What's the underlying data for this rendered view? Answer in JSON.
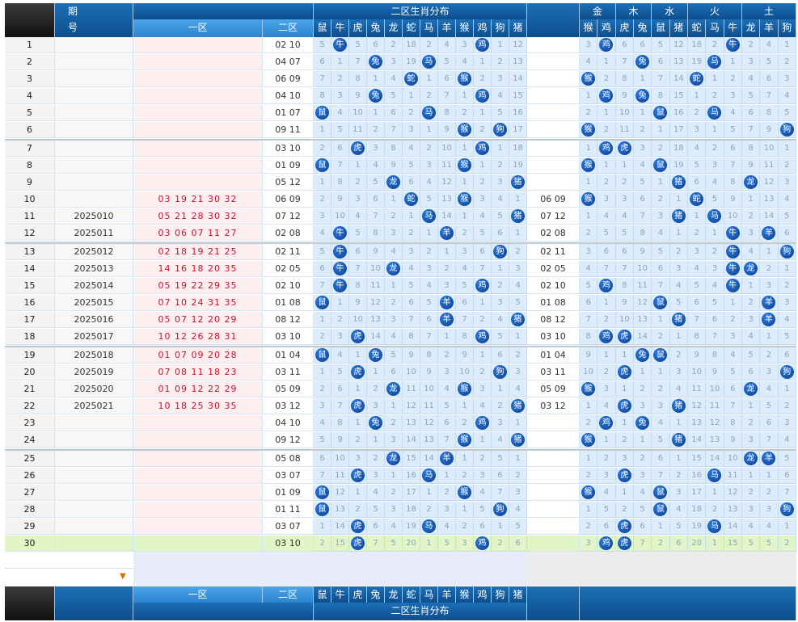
{
  "header": {
    "period_label": "期\n号",
    "period_label_top": "期",
    "period_label_bottom": "号",
    "zone1_label": "一区",
    "zone2_label": "二区",
    "dist_title": "二区生肖分布",
    "element_groups": [
      "金",
      "木",
      "水",
      "火",
      "土"
    ],
    "zodiac_cols": [
      "鼠",
      "牛",
      "虎",
      "兔",
      "龙",
      "蛇",
      "马",
      "羊",
      "猴",
      "鸡",
      "狗",
      "猪"
    ],
    "element_cols": [
      "猴",
      "鸡",
      "虎",
      "兔",
      "鼠",
      "猪",
      "蛇",
      "马",
      "牛",
      "龙",
      "羊",
      "狗"
    ]
  },
  "rows": [
    {
      "no": "1",
      "period": "",
      "z1": "",
      "z2": "02 10",
      "grid": [
        "5",
        "牛",
        "5",
        "6",
        "2",
        "18",
        "2",
        "4",
        "3",
        "鸡",
        "1",
        "12"
      ],
      "z3": "",
      "grid2": [
        "3",
        "鸡",
        "6",
        "6",
        "5",
        "12",
        "18",
        "2",
        "牛",
        "2",
        "4",
        "1"
      ]
    },
    {
      "no": "2",
      "period": "",
      "z1": "",
      "z2": "04 07",
      "grid": [
        "6",
        "1",
        "7",
        "兔",
        "3",
        "19",
        "马",
        "5",
        "4",
        "1",
        "2",
        "13"
      ],
      "z3": "",
      "grid2": [
        "4",
        "1",
        "7",
        "兔",
        "6",
        "13",
        "19",
        "马",
        "1",
        "3",
        "5",
        "2"
      ]
    },
    {
      "no": "3",
      "period": "",
      "z1": "",
      "z2": "06 09",
      "grid": [
        "7",
        "2",
        "8",
        "1",
        "4",
        "蛇",
        "1",
        "6",
        "猴",
        "2",
        "3",
        "14"
      ],
      "z3": "",
      "grid2": [
        "猴",
        "2",
        "8",
        "1",
        "7",
        "14",
        "蛇",
        "1",
        "2",
        "4",
        "6",
        "3"
      ]
    },
    {
      "no": "4",
      "period": "",
      "z1": "",
      "z2": "04 10",
      "grid": [
        "8",
        "3",
        "9",
        "兔",
        "5",
        "1",
        "2",
        "7",
        "1",
        "鸡",
        "4",
        "15"
      ],
      "z3": "",
      "grid2": [
        "1",
        "鸡",
        "9",
        "兔",
        "8",
        "15",
        "1",
        "2",
        "3",
        "5",
        "7",
        "4"
      ]
    },
    {
      "no": "5",
      "period": "",
      "z1": "",
      "z2": "01 07",
      "grid": [
        "鼠",
        "4",
        "10",
        "1",
        "6",
        "2",
        "马",
        "8",
        "2",
        "1",
        "5",
        "16"
      ],
      "z3": "",
      "grid2": [
        "2",
        "1",
        "10",
        "1",
        "鼠",
        "16",
        "2",
        "马",
        "4",
        "6",
        "8",
        "5"
      ]
    },
    {
      "no": "6",
      "period": "",
      "z1": "",
      "z2": "09 11",
      "grid": [
        "1",
        "5",
        "11",
        "2",
        "7",
        "3",
        "1",
        "9",
        "猴",
        "2",
        "狗",
        "17"
      ],
      "z3": "",
      "grid2": [
        "猴",
        "2",
        "11",
        "2",
        "1",
        "17",
        "3",
        "1",
        "5",
        "7",
        "9",
        "狗"
      ]
    },
    {
      "no": "7",
      "period": "",
      "z1": "",
      "z2": "03 10",
      "grid": [
        "2",
        "6",
        "虎",
        "3",
        "8",
        "4",
        "2",
        "10",
        "1",
        "鸡",
        "1",
        "18"
      ],
      "z3": "",
      "grid2": [
        "1",
        "鸡",
        "虎",
        "3",
        "2",
        "18",
        "4",
        "2",
        "6",
        "8",
        "10",
        "1"
      ]
    },
    {
      "no": "8",
      "period": "",
      "z1": "",
      "z2": "01 09",
      "grid": [
        "鼠",
        "7",
        "1",
        "4",
        "9",
        "5",
        "3",
        "11",
        "猴",
        "1",
        "2",
        "19"
      ],
      "z3": "",
      "grid2": [
        "猴",
        "1",
        "1",
        "4",
        "鼠",
        "19",
        "5",
        "3",
        "7",
        "9",
        "11",
        "2"
      ]
    },
    {
      "no": "9",
      "period": "",
      "z1": "",
      "z2": "05 12",
      "grid": [
        "1",
        "8",
        "2",
        "5",
        "龙",
        "6",
        "4",
        "12",
        "1",
        "2",
        "3",
        "猪"
      ],
      "z3": "",
      "grid2": [
        "1",
        "2",
        "2",
        "5",
        "1",
        "猪",
        "6",
        "4",
        "8",
        "龙",
        "12",
        "3"
      ]
    },
    {
      "no": "10",
      "period": "",
      "z1": "03 19 21 30 32",
      "z2": "06 09",
      "grid": [
        "2",
        "9",
        "3",
        "6",
        "1",
        "蛇",
        "5",
        "13",
        "猴",
        "3",
        "4",
        "1"
      ],
      "z3": "06 09",
      "grid2": [
        "猴",
        "3",
        "3",
        "6",
        "2",
        "1",
        "蛇",
        "5",
        "9",
        "1",
        "13",
        "4"
      ]
    },
    {
      "no": "11",
      "period": "2025010",
      "z1": "05 21 28 30 32",
      "z2": "07 12",
      "grid": [
        "3",
        "10",
        "4",
        "7",
        "2",
        "1",
        "马",
        "14",
        "1",
        "4",
        "5",
        "猪"
      ],
      "z3": "07 12",
      "grid2": [
        "1",
        "4",
        "4",
        "7",
        "3",
        "猪",
        "1",
        "马",
        "10",
        "2",
        "14",
        "5"
      ]
    },
    {
      "no": "12",
      "period": "2025011",
      "z1": "03 06 07 11 27",
      "z2": "02 08",
      "grid": [
        "4",
        "牛",
        "5",
        "8",
        "3",
        "2",
        "1",
        "羊",
        "2",
        "5",
        "6",
        "1"
      ],
      "z3": "02 08",
      "grid2": [
        "2",
        "5",
        "5",
        "8",
        "4",
        "1",
        "2",
        "1",
        "牛",
        "3",
        "羊",
        "6"
      ]
    },
    {
      "no": "13",
      "period": "2025012",
      "z1": "02 18 19 21 25",
      "z2": "02 11",
      "grid": [
        "5",
        "牛",
        "6",
        "9",
        "4",
        "3",
        "2",
        "1",
        "3",
        "6",
        "狗",
        "2"
      ],
      "z3": "02 11",
      "grid2": [
        "3",
        "6",
        "6",
        "9",
        "5",
        "2",
        "3",
        "2",
        "牛",
        "4",
        "1",
        "狗"
      ]
    },
    {
      "no": "14",
      "period": "2025013",
      "z1": "14 16 18 20 35",
      "z2": "02 05",
      "grid": [
        "6",
        "牛",
        "7",
        "10",
        "龙",
        "4",
        "3",
        "2",
        "4",
        "7",
        "1",
        "3"
      ],
      "z3": "02 05",
      "grid2": [
        "4",
        "7",
        "7",
        "10",
        "6",
        "3",
        "4",
        "3",
        "牛",
        "龙",
        "2",
        "1"
      ]
    },
    {
      "no": "15",
      "period": "2025014",
      "z1": "05 19 22 29 35",
      "z2": "02 10",
      "grid": [
        "7",
        "牛",
        "8",
        "11",
        "1",
        "5",
        "4",
        "3",
        "5",
        "鸡",
        "2",
        "4"
      ],
      "z3": "02 10",
      "grid2": [
        "5",
        "鸡",
        "8",
        "11",
        "7",
        "4",
        "5",
        "4",
        "牛",
        "1",
        "3",
        "2"
      ]
    },
    {
      "no": "16",
      "period": "2025015",
      "z1": "07 10 24 31 35",
      "z2": "01 08",
      "grid": [
        "鼠",
        "1",
        "9",
        "12",
        "2",
        "6",
        "5",
        "羊",
        "6",
        "1",
        "3",
        "5"
      ],
      "z3": "01 08",
      "grid2": [
        "6",
        "1",
        "9",
        "12",
        "鼠",
        "5",
        "6",
        "5",
        "1",
        "2",
        "羊",
        "3"
      ]
    },
    {
      "no": "17",
      "period": "2025016",
      "z1": "05 07 12 20 29",
      "z2": "08 12",
      "grid": [
        "1",
        "2",
        "10",
        "13",
        "3",
        "7",
        "6",
        "羊",
        "7",
        "2",
        "4",
        "猪"
      ],
      "z3": "08 12",
      "grid2": [
        "7",
        "2",
        "10",
        "13",
        "1",
        "猪",
        "7",
        "6",
        "2",
        "3",
        "羊",
        "4"
      ]
    },
    {
      "no": "18",
      "period": "2025017",
      "z1": "10 12 26 28 31",
      "z2": "03 10",
      "grid": [
        "2",
        "3",
        "虎",
        "14",
        "4",
        "8",
        "7",
        "1",
        "8",
        "鸡",
        "5",
        "1"
      ],
      "z3": "03 10",
      "grid2": [
        "8",
        "鸡",
        "虎",
        "14",
        "2",
        "1",
        "8",
        "7",
        "3",
        "4",
        "1",
        "5"
      ]
    },
    {
      "no": "19",
      "period": "2025018",
      "z1": "01 07 09 20 28",
      "z2": "01 04",
      "grid": [
        "鼠",
        "4",
        "1",
        "兔",
        "5",
        "9",
        "8",
        "2",
        "9",
        "1",
        "6",
        "2"
      ],
      "z3": "01 04",
      "grid2": [
        "9",
        "1",
        "1",
        "兔",
        "鼠",
        "2",
        "9",
        "8",
        "4",
        "5",
        "2",
        "6"
      ]
    },
    {
      "no": "20",
      "period": "2025019",
      "z1": "07 08 11 18 23",
      "z2": "03 11",
      "grid": [
        "1",
        "5",
        "虎",
        "1",
        "6",
        "10",
        "9",
        "3",
        "10",
        "2",
        "狗",
        "3"
      ],
      "z3": "03 11",
      "grid2": [
        "10",
        "2",
        "虎",
        "1",
        "1",
        "3",
        "10",
        "9",
        "5",
        "6",
        "3",
        "狗"
      ]
    },
    {
      "no": "21",
      "period": "2025020",
      "z1": "01 09 12 22 29",
      "z2": "05 09",
      "grid": [
        "2",
        "6",
        "1",
        "2",
        "龙",
        "11",
        "10",
        "4",
        "猴",
        "3",
        "1",
        "4"
      ],
      "z3": "05 09",
      "grid2": [
        "猴",
        "3",
        "1",
        "2",
        "2",
        "4",
        "11",
        "10",
        "6",
        "龙",
        "4",
        "1"
      ]
    },
    {
      "no": "22",
      "period": "2025021",
      "z1": "10 18 25 30 35",
      "z2": "03 12",
      "grid": [
        "3",
        "7",
        "虎",
        "3",
        "1",
        "12",
        "11",
        "5",
        "1",
        "4",
        "2",
        "猪"
      ],
      "z3": "03 12",
      "grid2": [
        "1",
        "4",
        "虎",
        "3",
        "3",
        "猪",
        "12",
        "11",
        "7",
        "1",
        "5",
        "2"
      ]
    },
    {
      "no": "23",
      "period": "",
      "z1": "",
      "z2": "04 10",
      "grid": [
        "4",
        "8",
        "1",
        "兔",
        "2",
        "13",
        "12",
        "6",
        "2",
        "鸡",
        "3",
        "1"
      ],
      "z3": "",
      "grid2": [
        "2",
        "鸡",
        "1",
        "兔",
        "4",
        "1",
        "13",
        "12",
        "8",
        "2",
        "6",
        "3"
      ]
    },
    {
      "no": "24",
      "period": "",
      "z1": "",
      "z2": "09 12",
      "grid": [
        "5",
        "9",
        "2",
        "1",
        "3",
        "14",
        "13",
        "7",
        "猴",
        "1",
        "4",
        "猪"
      ],
      "z3": "",
      "grid2": [
        "猴",
        "1",
        "2",
        "1",
        "5",
        "猪",
        "14",
        "13",
        "9",
        "3",
        "7",
        "4"
      ]
    },
    {
      "no": "25",
      "period": "",
      "z1": "",
      "z2": "05 08",
      "grid": [
        "6",
        "10",
        "3",
        "2",
        "龙",
        "15",
        "14",
        "羊",
        "1",
        "2",
        "5",
        "1"
      ],
      "z3": "",
      "grid2": [
        "1",
        "2",
        "3",
        "2",
        "6",
        "1",
        "15",
        "14",
        "10",
        "龙",
        "羊",
        "5"
      ]
    },
    {
      "no": "26",
      "period": "",
      "z1": "",
      "z2": "03 07",
      "grid": [
        "7",
        "11",
        "虎",
        "3",
        "1",
        "16",
        "马",
        "1",
        "2",
        "3",
        "6",
        "2"
      ],
      "z3": "",
      "grid2": [
        "2",
        "3",
        "虎",
        "3",
        "7",
        "2",
        "16",
        "马",
        "11",
        "1",
        "1",
        "6"
      ]
    },
    {
      "no": "27",
      "period": "",
      "z1": "",
      "z2": "01 09",
      "grid": [
        "鼠",
        "12",
        "1",
        "4",
        "2",
        "17",
        "1",
        "2",
        "猴",
        "4",
        "7",
        "3"
      ],
      "z3": "",
      "grid2": [
        "猴",
        "4",
        "1",
        "4",
        "鼠",
        "3",
        "17",
        "1",
        "12",
        "2",
        "2",
        "7"
      ]
    },
    {
      "no": "28",
      "period": "",
      "z1": "",
      "z2": "01 11",
      "grid": [
        "鼠",
        "13",
        "2",
        "5",
        "3",
        "18",
        "2",
        "3",
        "1",
        "5",
        "狗",
        "4"
      ],
      "z3": "",
      "grid2": [
        "1",
        "5",
        "2",
        "5",
        "鼠",
        "4",
        "18",
        "2",
        "13",
        "3",
        "3",
        "狗"
      ]
    },
    {
      "no": "29",
      "period": "",
      "z1": "",
      "z2": "03 07",
      "grid": [
        "1",
        "14",
        "虎",
        "6",
        "4",
        "19",
        "马",
        "4",
        "2",
        "6",
        "1",
        "5"
      ],
      "z3": "",
      "grid2": [
        "2",
        "6",
        "虎",
        "6",
        "1",
        "5",
        "19",
        "马",
        "14",
        "4",
        "4",
        "1"
      ]
    },
    {
      "no": "30",
      "period": "",
      "z1": "",
      "z2": "03 10",
      "grid": [
        "2",
        "15",
        "虎",
        "7",
        "5",
        "20",
        "1",
        "5",
        "3",
        "鸡",
        "2",
        "6"
      ],
      "z3": "",
      "grid2": [
        "3",
        "鸡",
        "虎",
        "7",
        "2",
        "6",
        "20",
        "1",
        "15",
        "5",
        "5",
        "2"
      ]
    }
  ],
  "colors": {
    "ball": "#0a3d8a",
    "zone1_text": "#c8102e",
    "header_blue": "#1c6fb6"
  }
}
